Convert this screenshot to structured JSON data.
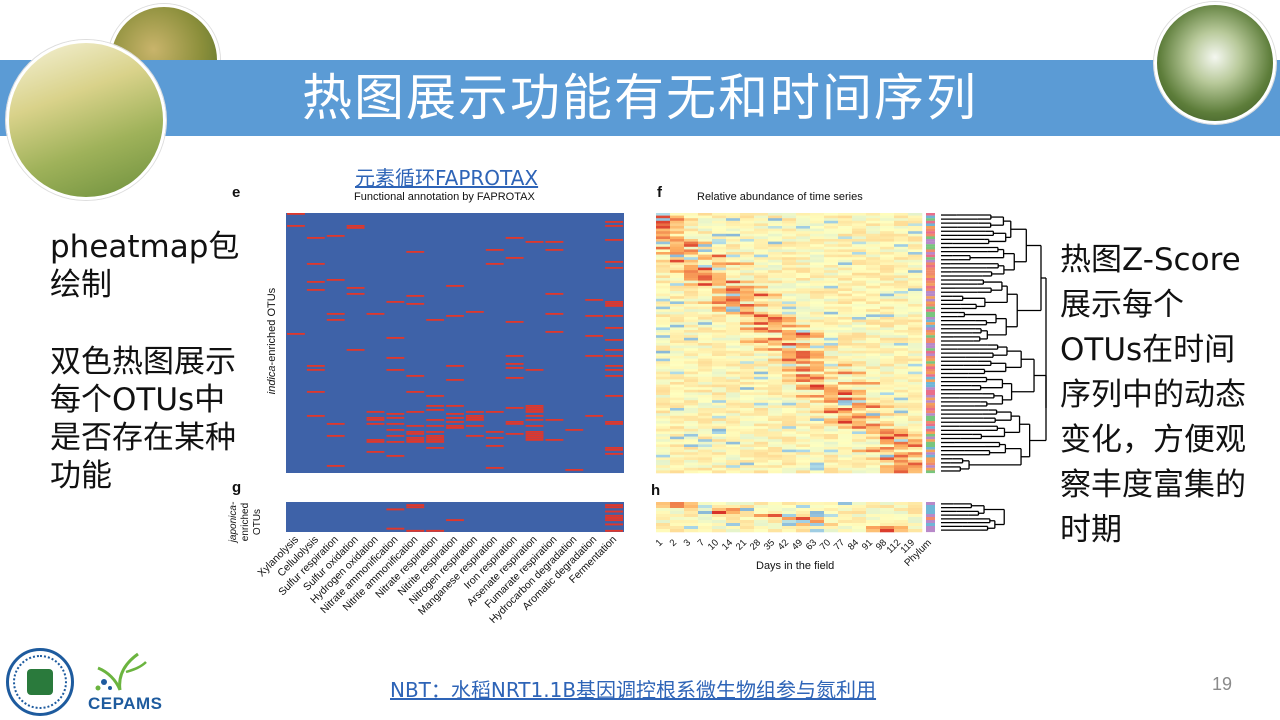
{
  "slide": {
    "title": "热图展示功能有无和时间序列",
    "left_text_1": "pheatmap包绘制",
    "left_text_2": "双色热图展示每个OTUs中是否存在某种功能",
    "right_text": "热图Z-Score展示每个OTUs在时间序列中的动态变化，方便观察丰度富集的时期",
    "link_top": "元素循环FAPROTAX",
    "link_bottom": "NBT：水稻NRT1.1B基因调控根系微生物组参与氮利用",
    "page_number": "19",
    "logo_text": "CEPAMS"
  },
  "figure": {
    "panel_e": "e",
    "panel_f": "f",
    "panel_g": "g",
    "panel_h": "h",
    "e_title": "Functional annotation by FAPROTAX",
    "f_title": "Relative abundance of time series",
    "indica_label_italic": "indica",
    "indica_label_rest": "-enriched OTUs",
    "japonica_label_1": "japonica-",
    "japonica_label_2": "enriched",
    "japonica_label_3": "OTUs",
    "f_xlabel": "Days in the field",
    "phylum_label": "Phylum",
    "colors": {
      "binary_absent": "#3e62a8",
      "binary_present": "#e0372b",
      "title_bar": "#5b9bd5",
      "link": "#2e64b7"
    }
  },
  "chart_data": [
    {
      "type": "heatmap",
      "title": "Functional annotation by FAPROTAX",
      "columns": [
        "Xylanolysis",
        "Cellulolysis",
        "Sulfur respiration",
        "Sulfur oxidation",
        "Hydrogen oxidation",
        "Nitrate ammonification",
        "Nitrite ammonification",
        "Nitrate respiration",
        "Nitrite respiration",
        "Nitrogen respiration",
        "Manganese respiration",
        "Iron respiration",
        "Arsenate respiration",
        "Fumarate respiration",
        "Hydrocarbon degradation",
        "Aromatic degradation",
        "Fermentation"
      ],
      "value_scale": "binary presence/absence",
      "row_groups": [
        "indica-enriched OTUs",
        "japonica-enriched OTUs"
      ]
    },
    {
      "type": "heatmap",
      "title": "Relative abundance of time series",
      "xlabel": "Days in the field",
      "columns": [
        "1",
        "2",
        "3",
        "7",
        "10",
        "14",
        "21",
        "28",
        "35",
        "42",
        "49",
        "63",
        "70",
        "77",
        "84",
        "91",
        "98",
        "112",
        "119"
      ],
      "value_scale": "Z-score",
      "extra_column": "Phylum"
    }
  ]
}
